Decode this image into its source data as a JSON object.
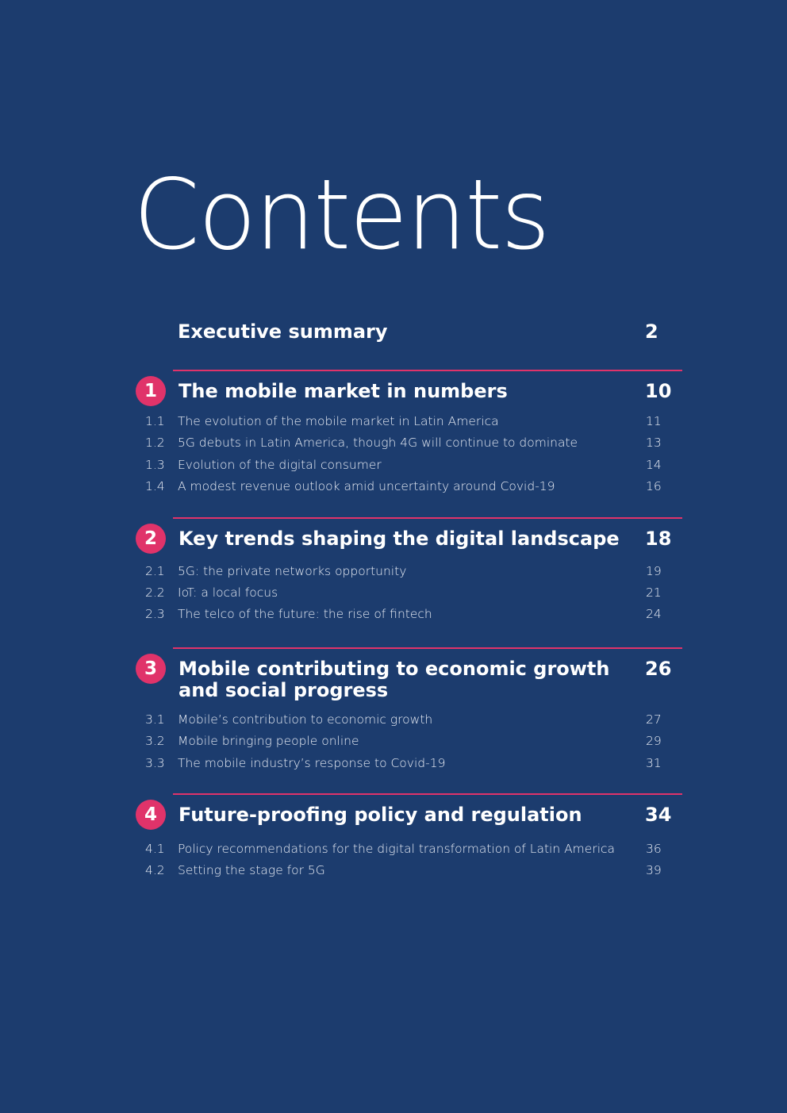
{
  "title": "Contents",
  "executive_summary": {
    "label": "Executive summary",
    "page": "2"
  },
  "sections": [
    {
      "number": "1",
      "title": "The mobile market in numbers",
      "page": "10",
      "items": [
        {
          "number": "1.1",
          "label": "The evolution of the mobile market in Latin America",
          "page": "11"
        },
        {
          "number": "1.2",
          "label": "5G debuts in Latin America, though 4G will continue to dominate",
          "page": "13"
        },
        {
          "number": "1.3",
          "label": "Evolution of the digital consumer",
          "page": "14"
        },
        {
          "number": "1.4",
          "label": "A modest revenue outlook amid uncertainty around Covid-19",
          "page": "16"
        }
      ]
    },
    {
      "number": "2",
      "title": "Key trends shaping the digital landscape",
      "page": "18",
      "items": [
        {
          "number": "2.1",
          "label": "5G: the private networks opportunity",
          "page": "19"
        },
        {
          "number": "2.2",
          "label": "IoT: a local focus",
          "page": "21"
        },
        {
          "number": "2.3",
          "label": "The telco of the future: the rise of fintech",
          "page": "24"
        }
      ]
    },
    {
      "number": "3",
      "title_line1": "Mobile contributing to economic growth",
      "title_line2": "and social progress",
      "page": "26",
      "items": [
        {
          "number": "3.1",
          "label": "Mobile’s contribution to economic growth",
          "page": "27"
        },
        {
          "number": "3.2",
          "label": "Mobile bringing people online",
          "page": "29"
        },
        {
          "number": "3.3",
          "label": "The mobile industry’s response to Covid-19",
          "page": "31"
        }
      ]
    },
    {
      "number": "4",
      "title": "Future-proofing policy and regulation",
      "page": "34",
      "items": [
        {
          "number": "4.1",
          "label": "Policy recommendations for the digital transformation of Latin America",
          "page": "36"
        },
        {
          "number": "4.2",
          "label": "Setting the stage for 5G",
          "page": "39"
        }
      ]
    }
  ],
  "colors": {
    "background": "#1c3c6e",
    "accent": "#e0336a",
    "text": "#ffffff"
  }
}
